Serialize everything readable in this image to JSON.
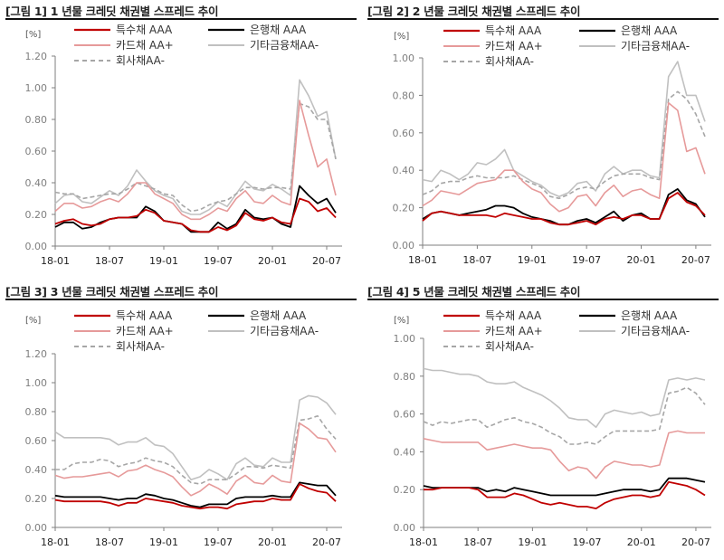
{
  "chart_data": [
    {
      "type": "line",
      "title": "[그림 1] 1 년물 크레딧 채권별 스프레드 추이",
      "ylabel": "[%]",
      "ylim": [
        0,
        1.2
      ],
      "yticks": [
        "0.00",
        "0.20",
        "0.40",
        "0.60",
        "0.80",
        "1.00",
        "1.20"
      ],
      "xticks": [
        "18-01",
        "18-07",
        "19-01",
        "19-07",
        "20-01",
        "20-07"
      ],
      "x": [
        "2018-01",
        "2018-02",
        "2018-03",
        "2018-04",
        "2018-05",
        "2018-06",
        "2018-07",
        "2018-08",
        "2018-09",
        "2018-10",
        "2018-11",
        "2018-12",
        "2019-01",
        "2019-02",
        "2019-03",
        "2019-04",
        "2019-05",
        "2019-06",
        "2019-07",
        "2019-08",
        "2019-09",
        "2019-10",
        "2019-11",
        "2019-12",
        "2020-01",
        "2020-02",
        "2020-03",
        "2020-04",
        "2020-05",
        "2020-06",
        "2020-07",
        "2020-08"
      ],
      "legend": "top",
      "grid": false,
      "series": [
        {
          "name": "특수채 AAA",
          "color": "#c00000",
          "dash": false,
          "values": [
            0.14,
            0.16,
            0.17,
            0.14,
            0.13,
            0.14,
            0.17,
            0.18,
            0.18,
            0.19,
            0.23,
            0.21,
            0.16,
            0.15,
            0.14,
            0.1,
            0.09,
            0.09,
            0.12,
            0.1,
            0.13,
            0.21,
            0.17,
            0.16,
            0.18,
            0.15,
            0.14,
            0.3,
            0.28,
            0.22,
            0.24,
            0.18
          ]
        },
        {
          "name": "은행채 AAA",
          "color": "#000000",
          "dash": false,
          "values": [
            0.12,
            0.15,
            0.15,
            0.11,
            0.12,
            0.15,
            0.17,
            0.18,
            0.18,
            0.18,
            0.25,
            0.22,
            0.16,
            0.15,
            0.14,
            0.09,
            0.09,
            0.09,
            0.15,
            0.11,
            0.14,
            0.23,
            0.18,
            0.17,
            0.18,
            0.14,
            0.12,
            0.38,
            0.32,
            0.27,
            0.3,
            0.21
          ]
        },
        {
          "name": "카드채 AA+",
          "color": "#e69a9a",
          "dash": false,
          "values": [
            0.22,
            0.27,
            0.27,
            0.24,
            0.25,
            0.28,
            0.3,
            0.28,
            0.33,
            0.4,
            0.4,
            0.33,
            0.3,
            0.27,
            0.2,
            0.17,
            0.17,
            0.2,
            0.24,
            0.22,
            0.3,
            0.35,
            0.28,
            0.27,
            0.32,
            0.28,
            0.26,
            0.92,
            0.7,
            0.5,
            0.55,
            0.32
          ]
        },
        {
          "name": "기타금융채AA-",
          "color": "#c0c0c0",
          "dash": false,
          "values": [
            0.27,
            0.32,
            0.33,
            0.28,
            0.27,
            0.31,
            0.35,
            0.32,
            0.38,
            0.48,
            0.41,
            0.35,
            0.32,
            0.3,
            0.22,
            0.2,
            0.2,
            0.23,
            0.28,
            0.25,
            0.33,
            0.41,
            0.36,
            0.35,
            0.39,
            0.36,
            0.32,
            1.05,
            0.95,
            0.82,
            0.85,
            0.55
          ]
        },
        {
          "name": "회사채AA-",
          "color": "#a6a6a6",
          "dash": true,
          "values": [
            0.34,
            0.33,
            0.33,
            0.3,
            0.31,
            0.32,
            0.33,
            0.33,
            0.36,
            0.4,
            0.38,
            0.36,
            0.33,
            0.32,
            0.26,
            0.22,
            0.23,
            0.26,
            0.28,
            0.29,
            0.33,
            0.37,
            0.37,
            0.36,
            0.37,
            0.37,
            0.36,
            0.9,
            0.88,
            0.8,
            0.8,
            0.55
          ]
        }
      ]
    },
    {
      "type": "line",
      "title": "[그림 2] 2 년물 크레딧 채권별 스프레드 추이",
      "ylabel": "[%]",
      "ylim": [
        0,
        1.0
      ],
      "yticks": [
        "0.00",
        "0.20",
        "0.40",
        "0.60",
        "0.80",
        "1.00"
      ],
      "xticks": [
        "18-01",
        "18-07",
        "19-01",
        "19-07",
        "20-01",
        "20-07"
      ],
      "x": [
        "2018-01",
        "2018-02",
        "2018-03",
        "2018-04",
        "2018-05",
        "2018-06",
        "2018-07",
        "2018-08",
        "2018-09",
        "2018-10",
        "2018-11",
        "2018-12",
        "2019-01",
        "2019-02",
        "2019-03",
        "2019-04",
        "2019-05",
        "2019-06",
        "2019-07",
        "2019-08",
        "2019-09",
        "2019-10",
        "2019-11",
        "2019-12",
        "2020-01",
        "2020-02",
        "2020-03",
        "2020-04",
        "2020-05",
        "2020-06",
        "2020-07",
        "2020-08"
      ],
      "legend": "top",
      "grid": false,
      "series": [
        {
          "name": "특수채 AAA",
          "color": "#c00000",
          "dash": false,
          "values": [
            0.13,
            0.17,
            0.18,
            0.17,
            0.16,
            0.16,
            0.16,
            0.16,
            0.15,
            0.17,
            0.16,
            0.15,
            0.14,
            0.14,
            0.12,
            0.11,
            0.11,
            0.12,
            0.13,
            0.11,
            0.14,
            0.15,
            0.14,
            0.16,
            0.16,
            0.14,
            0.14,
            0.25,
            0.28,
            0.23,
            0.21,
            0.16
          ]
        },
        {
          "name": "은행채 AAA",
          "color": "#000000",
          "dash": false,
          "values": [
            0.14,
            0.17,
            0.18,
            0.17,
            0.16,
            0.17,
            0.18,
            0.19,
            0.21,
            0.21,
            0.2,
            0.17,
            0.15,
            0.14,
            0.13,
            0.11,
            0.11,
            0.13,
            0.14,
            0.12,
            0.15,
            0.18,
            0.13,
            0.16,
            0.17,
            0.14,
            0.14,
            0.27,
            0.3,
            0.24,
            0.22,
            0.15
          ]
        },
        {
          "name": "카드채 AA+",
          "color": "#e69a9a",
          "dash": false,
          "values": [
            0.21,
            0.24,
            0.29,
            0.28,
            0.27,
            0.3,
            0.33,
            0.34,
            0.35,
            0.4,
            0.4,
            0.34,
            0.3,
            0.28,
            0.22,
            0.18,
            0.2,
            0.26,
            0.27,
            0.21,
            0.28,
            0.32,
            0.26,
            0.29,
            0.3,
            0.27,
            0.25,
            0.76,
            0.72,
            0.5,
            0.52,
            0.38
          ]
        },
        {
          "name": "기타금융채AA-",
          "color": "#c0c0c0",
          "dash": false,
          "values": [
            0.35,
            0.34,
            0.4,
            0.38,
            0.35,
            0.38,
            0.44,
            0.43,
            0.46,
            0.51,
            0.4,
            0.37,
            0.34,
            0.32,
            0.28,
            0.26,
            0.28,
            0.33,
            0.34,
            0.29,
            0.38,
            0.42,
            0.38,
            0.4,
            0.4,
            0.37,
            0.36,
            0.9,
            0.98,
            0.8,
            0.8,
            0.66
          ]
        },
        {
          "name": "회사채AA-",
          "color": "#a6a6a6",
          "dash": true,
          "values": [
            0.27,
            0.29,
            0.33,
            0.34,
            0.34,
            0.36,
            0.37,
            0.36,
            0.36,
            0.36,
            0.37,
            0.35,
            0.33,
            0.31,
            0.26,
            0.25,
            0.27,
            0.3,
            0.31,
            0.3,
            0.34,
            0.37,
            0.38,
            0.38,
            0.38,
            0.36,
            0.35,
            0.78,
            0.82,
            0.78,
            0.7,
            0.58
          ]
        }
      ]
    },
    {
      "type": "line",
      "title": "[그림 3] 3 년물 크레딧 채권별 스프레드 추이",
      "ylabel": "[%]",
      "ylim": [
        0,
        1.2
      ],
      "yticks": [
        "0.00",
        "0.20",
        "0.40",
        "0.60",
        "0.80",
        "1.00",
        "1.20"
      ],
      "xticks": [
        "18-01",
        "18-07",
        "19-01",
        "19-07",
        "20-01",
        "20-07"
      ],
      "x": [
        "2018-01",
        "2018-02",
        "2018-03",
        "2018-04",
        "2018-05",
        "2018-06",
        "2018-07",
        "2018-08",
        "2018-09",
        "2018-10",
        "2018-11",
        "2018-12",
        "2019-01",
        "2019-02",
        "2019-03",
        "2019-04",
        "2019-05",
        "2019-06",
        "2019-07",
        "2019-08",
        "2019-09",
        "2019-10",
        "2019-11",
        "2019-12",
        "2020-01",
        "2020-02",
        "2020-03",
        "2020-04",
        "2020-05",
        "2020-06",
        "2020-07",
        "2020-08"
      ],
      "legend": "top",
      "grid": false,
      "series": [
        {
          "name": "특수채 AAA",
          "color": "#c00000",
          "dash": false,
          "values": [
            0.19,
            0.18,
            0.18,
            0.18,
            0.18,
            0.18,
            0.17,
            0.15,
            0.17,
            0.17,
            0.2,
            0.19,
            0.18,
            0.17,
            0.15,
            0.14,
            0.13,
            0.14,
            0.14,
            0.13,
            0.16,
            0.17,
            0.18,
            0.18,
            0.2,
            0.19,
            0.19,
            0.3,
            0.27,
            0.25,
            0.24,
            0.18
          ]
        },
        {
          "name": "은행채 AAA",
          "color": "#000000",
          "dash": false,
          "values": [
            0.22,
            0.21,
            0.21,
            0.21,
            0.21,
            0.21,
            0.2,
            0.19,
            0.2,
            0.2,
            0.23,
            0.22,
            0.2,
            0.19,
            0.17,
            0.15,
            0.14,
            0.16,
            0.16,
            0.16,
            0.2,
            0.21,
            0.21,
            0.21,
            0.22,
            0.21,
            0.21,
            0.31,
            0.3,
            0.29,
            0.29,
            0.22
          ]
        },
        {
          "name": "카드채 AA+",
          "color": "#e69a9a",
          "dash": false,
          "values": [
            0.36,
            0.34,
            0.35,
            0.35,
            0.36,
            0.37,
            0.38,
            0.35,
            0.39,
            0.4,
            0.43,
            0.4,
            0.38,
            0.35,
            0.28,
            0.22,
            0.25,
            0.3,
            0.27,
            0.23,
            0.32,
            0.36,
            0.31,
            0.3,
            0.36,
            0.32,
            0.31,
            0.72,
            0.68,
            0.62,
            0.61,
            0.52
          ]
        },
        {
          "name": "기타금융채AA-",
          "color": "#c0c0c0",
          "dash": false,
          "values": [
            0.66,
            0.62,
            0.62,
            0.62,
            0.62,
            0.62,
            0.61,
            0.57,
            0.59,
            0.59,
            0.62,
            0.57,
            0.56,
            0.51,
            0.42,
            0.33,
            0.35,
            0.4,
            0.37,
            0.33,
            0.44,
            0.48,
            0.43,
            0.42,
            0.48,
            0.45,
            0.45,
            0.88,
            0.91,
            0.9,
            0.86,
            0.78
          ]
        },
        {
          "name": "회사채AA-",
          "color": "#a6a6a6",
          "dash": true,
          "values": [
            0.4,
            0.4,
            0.44,
            0.45,
            0.45,
            0.47,
            0.46,
            0.42,
            0.44,
            0.45,
            0.48,
            0.46,
            0.45,
            0.42,
            0.36,
            0.31,
            0.3,
            0.33,
            0.33,
            0.33,
            0.37,
            0.42,
            0.42,
            0.41,
            0.43,
            0.42,
            0.41,
            0.74,
            0.75,
            0.77,
            0.68,
            0.61
          ]
        }
      ]
    },
    {
      "type": "line",
      "title": "[그림 4] 5 년물 크레딧 채권별 스프레드 추이",
      "ylabel": "[%]",
      "ylim": [
        0,
        1.0
      ],
      "yticks": [
        "0.00",
        "0.20",
        "0.40",
        "0.60",
        "0.80",
        "1.00"
      ],
      "xticks": [
        "18-01",
        "18-07",
        "19-01",
        "19-07",
        "20-01",
        "20-07"
      ],
      "x": [
        "2018-01",
        "2018-02",
        "2018-03",
        "2018-04",
        "2018-05",
        "2018-06",
        "2018-07",
        "2018-08",
        "2018-09",
        "2018-10",
        "2018-11",
        "2018-12",
        "2019-01",
        "2019-02",
        "2019-03",
        "2019-04",
        "2019-05",
        "2019-06",
        "2019-07",
        "2019-08",
        "2019-09",
        "2019-10",
        "2019-11",
        "2019-12",
        "2020-01",
        "2020-02",
        "2020-03",
        "2020-04",
        "2020-05",
        "2020-06",
        "2020-07",
        "2020-08"
      ],
      "legend": "top",
      "grid": false,
      "series": [
        {
          "name": "특수채 AAA",
          "color": "#c00000",
          "dash": false,
          "values": [
            0.2,
            0.2,
            0.21,
            0.21,
            0.21,
            0.21,
            0.2,
            0.16,
            0.16,
            0.16,
            0.18,
            0.17,
            0.15,
            0.13,
            0.12,
            0.13,
            0.12,
            0.11,
            0.11,
            0.1,
            0.13,
            0.15,
            0.16,
            0.17,
            0.17,
            0.16,
            0.17,
            0.24,
            0.23,
            0.22,
            0.2,
            0.17
          ]
        },
        {
          "name": "은행채 AAA",
          "color": "#000000",
          "dash": false,
          "values": [
            0.22,
            0.21,
            0.21,
            0.21,
            0.21,
            0.21,
            0.21,
            0.19,
            0.2,
            0.19,
            0.21,
            0.2,
            0.19,
            0.18,
            0.17,
            0.17,
            0.17,
            0.17,
            0.17,
            0.17,
            0.18,
            0.19,
            0.2,
            0.2,
            0.2,
            0.19,
            0.2,
            0.26,
            0.26,
            0.26,
            0.25,
            0.24
          ]
        },
        {
          "name": "카드채 AA+",
          "color": "#e69a9a",
          "dash": false,
          "values": [
            0.47,
            0.46,
            0.45,
            0.45,
            0.45,
            0.45,
            0.45,
            0.41,
            0.42,
            0.43,
            0.44,
            0.43,
            0.42,
            0.42,
            0.41,
            0.35,
            0.3,
            0.32,
            0.31,
            0.26,
            0.32,
            0.35,
            0.34,
            0.33,
            0.33,
            0.32,
            0.33,
            0.5,
            0.51,
            0.5,
            0.5,
            0.5
          ]
        },
        {
          "name": "기타금융채AA-",
          "color": "#c0c0c0",
          "dash": false,
          "values": [
            0.84,
            0.83,
            0.83,
            0.82,
            0.81,
            0.81,
            0.8,
            0.77,
            0.76,
            0.76,
            0.77,
            0.74,
            0.72,
            0.7,
            0.67,
            0.63,
            0.58,
            0.57,
            0.57,
            0.53,
            0.6,
            0.62,
            0.61,
            0.6,
            0.61,
            0.59,
            0.6,
            0.78,
            0.79,
            0.78,
            0.79,
            0.78
          ]
        },
        {
          "name": "회사채AA-",
          "color": "#a6a6a6",
          "dash": true,
          "values": [
            0.56,
            0.54,
            0.56,
            0.55,
            0.56,
            0.57,
            0.57,
            0.53,
            0.55,
            0.57,
            0.58,
            0.56,
            0.55,
            0.53,
            0.5,
            0.48,
            0.44,
            0.44,
            0.45,
            0.44,
            0.48,
            0.51,
            0.51,
            0.51,
            0.51,
            0.51,
            0.52,
            0.71,
            0.72,
            0.74,
            0.71,
            0.65
          ]
        }
      ]
    }
  ]
}
